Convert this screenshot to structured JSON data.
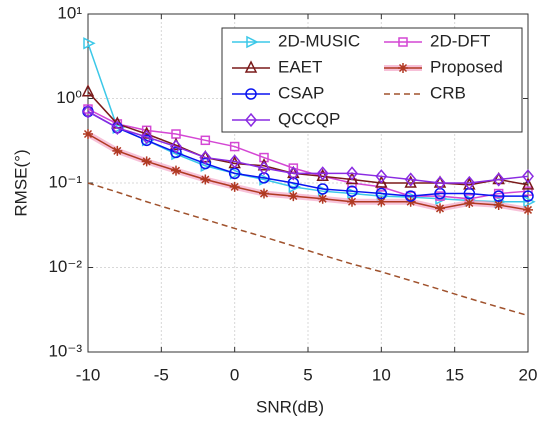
{
  "chart_data": {
    "type": "line",
    "x_label": "SNR(dB)",
    "y_label": "RMSE(°)",
    "x": [
      -10,
      -8,
      -6,
      -4,
      -2,
      0,
      2,
      4,
      6,
      8,
      10,
      12,
      14,
      16,
      18,
      20
    ],
    "xlim": [
      -10,
      20
    ],
    "xticks": [
      -10,
      -5,
      0,
      5,
      10,
      15,
      20
    ],
    "ylim": [
      0.001,
      10
    ],
    "log_y": true,
    "yticks": [
      {
        "value": 0.001,
        "label": "10⁻³"
      },
      {
        "value": 0.01,
        "label": "10⁻²"
      },
      {
        "value": 0.1,
        "label": "10⁻¹"
      },
      {
        "value": 1,
        "label": "10⁰"
      },
      {
        "value": 10,
        "label": "10¹"
      }
    ],
    "grid": true,
    "legend": "upper right",
    "series": [
      {
        "name": "2D-MUSIC",
        "color": "#3cc8e8",
        "marker": "triangle-right",
        "linestyle": "solid",
        "values": [
          4.5,
          0.45,
          0.32,
          0.22,
          0.16,
          0.13,
          0.11,
          0.09,
          0.08,
          0.075,
          0.07,
          0.068,
          0.065,
          0.062,
          0.06,
          0.06
        ]
      },
      {
        "name": "2D-DFT",
        "color": "#d447d4",
        "marker": "square",
        "linestyle": "solid",
        "values": [
          0.75,
          0.5,
          0.42,
          0.38,
          0.32,
          0.27,
          0.2,
          0.15,
          0.12,
          0.1,
          0.09,
          0.07,
          0.07,
          0.065,
          0.075,
          0.08
        ]
      },
      {
        "name": "EAET",
        "color": "#7a1a1a",
        "marker": "triangle-up",
        "linestyle": "solid",
        "values": [
          1.2,
          0.5,
          0.38,
          0.28,
          0.2,
          0.17,
          0.16,
          0.13,
          0.12,
          0.11,
          0.1,
          0.1,
          0.1,
          0.095,
          0.11,
          0.095
        ]
      },
      {
        "name": "Proposed",
        "color": "#b03a22",
        "marker": "asterisk",
        "linestyle": "solid",
        "values": [
          0.38,
          0.24,
          0.18,
          0.14,
          0.11,
          0.09,
          0.075,
          0.07,
          0.065,
          0.06,
          0.06,
          0.06,
          0.05,
          0.058,
          0.055,
          0.048
        ]
      },
      {
        "name": "CSAP",
        "color": "#0a14f0",
        "marker": "circle",
        "linestyle": "solid",
        "values": [
          0.7,
          0.45,
          0.32,
          0.23,
          0.17,
          0.13,
          0.115,
          0.1,
          0.085,
          0.08,
          0.075,
          0.07,
          0.075,
          0.075,
          0.07,
          0.07
        ]
      },
      {
        "name": "CRB",
        "color": "#a0522d",
        "marker": "none",
        "linestyle": "dashed",
        "values": [
          0.1,
          0.078,
          0.06,
          0.047,
          0.037,
          0.029,
          0.023,
          0.018,
          0.014,
          0.011,
          0.0089,
          0.007,
          0.0055,
          0.0043,
          0.0034,
          0.0027
        ]
      },
      {
        "name": "QCCQP",
        "color": "#8a2be2",
        "marker": "diamond",
        "linestyle": "solid",
        "values": [
          0.7,
          0.45,
          0.35,
          0.27,
          0.2,
          0.18,
          0.15,
          0.13,
          0.13,
          0.13,
          0.12,
          0.11,
          0.1,
          0.1,
          0.11,
          0.12
        ]
      }
    ]
  }
}
